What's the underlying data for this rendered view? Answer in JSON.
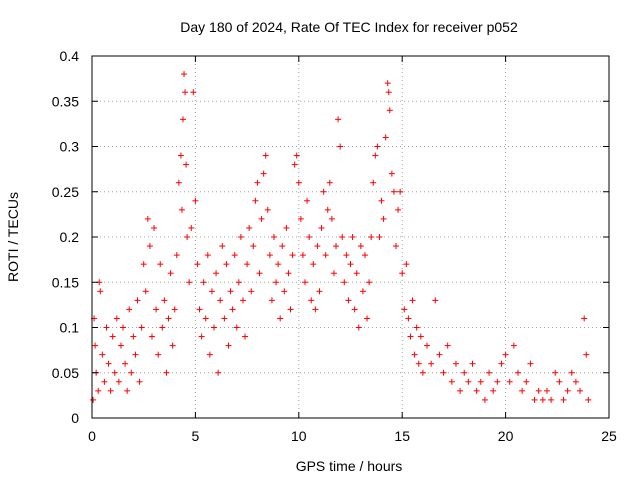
{
  "chart_data": {
    "type": "scatter",
    "title": "Day 180 of 2024, Rate Of TEC Index for receiver p052",
    "xlabel": "GPS time / hours",
    "ylabel": "ROTI / TECUs",
    "xlim": [
      0,
      25
    ],
    "ylim": [
      0,
      0.4
    ],
    "xticks": [
      0,
      5,
      10,
      15,
      20,
      25
    ],
    "yticks": [
      0,
      0.05,
      0.1,
      0.15,
      0.2,
      0.25,
      0.3,
      0.35,
      0.4
    ],
    "grid": true,
    "marker": "+",
    "color": "#ff0000",
    "series": [
      {
        "name": "ROTI",
        "points": [
          [
            0.05,
            0.02
          ],
          [
            0.1,
            0.11
          ],
          [
            0.15,
            0.08
          ],
          [
            0.2,
            0.05
          ],
          [
            0.3,
            0.03
          ],
          [
            0.35,
            0.15
          ],
          [
            0.4,
            0.14
          ],
          [
            0.5,
            0.07
          ],
          [
            0.6,
            0.04
          ],
          [
            0.7,
            0.1
          ],
          [
            0.8,
            0.06
          ],
          [
            0.9,
            0.03
          ],
          [
            1.0,
            0.09
          ],
          [
            1.1,
            0.05
          ],
          [
            1.2,
            0.11
          ],
          [
            1.3,
            0.04
          ],
          [
            1.4,
            0.08
          ],
          [
            1.5,
            0.1
          ],
          [
            1.6,
            0.06
          ],
          [
            1.7,
            0.03
          ],
          [
            1.8,
            0.12
          ],
          [
            1.9,
            0.05
          ],
          [
            2.0,
            0.09
          ],
          [
            2.1,
            0.07
          ],
          [
            2.2,
            0.13
          ],
          [
            2.3,
            0.04
          ],
          [
            2.4,
            0.1
          ],
          [
            2.5,
            0.17
          ],
          [
            2.6,
            0.14
          ],
          [
            2.7,
            0.22
          ],
          [
            2.8,
            0.19
          ],
          [
            2.9,
            0.09
          ],
          [
            3.0,
            0.21
          ],
          [
            3.1,
            0.12
          ],
          [
            3.2,
            0.07
          ],
          [
            3.3,
            0.17
          ],
          [
            3.4,
            0.1
          ],
          [
            3.5,
            0.13
          ],
          [
            3.6,
            0.05
          ],
          [
            3.7,
            0.11
          ],
          [
            3.8,
            0.16
          ],
          [
            3.9,
            0.08
          ],
          [
            4.0,
            0.12
          ],
          [
            4.1,
            0.18
          ],
          [
            4.2,
            0.26
          ],
          [
            4.3,
            0.29
          ],
          [
            4.35,
            0.23
          ],
          [
            4.4,
            0.33
          ],
          [
            4.45,
            0.38
          ],
          [
            4.5,
            0.36
          ],
          [
            4.55,
            0.28
          ],
          [
            4.6,
            0.2
          ],
          [
            4.7,
            0.15
          ],
          [
            4.8,
            0.21
          ],
          [
            4.9,
            0.36
          ],
          [
            5.0,
            0.24
          ],
          [
            5.1,
            0.17
          ],
          [
            5.2,
            0.12
          ],
          [
            5.3,
            0.09
          ],
          [
            5.4,
            0.15
          ],
          [
            5.5,
            0.11
          ],
          [
            5.6,
            0.18
          ],
          [
            5.7,
            0.07
          ],
          [
            5.8,
            0.14
          ],
          [
            5.9,
            0.1
          ],
          [
            6.0,
            0.16
          ],
          [
            6.1,
            0.05
          ],
          [
            6.2,
            0.13
          ],
          [
            6.3,
            0.19
          ],
          [
            6.4,
            0.11
          ],
          [
            6.5,
            0.17
          ],
          [
            6.6,
            0.08
          ],
          [
            6.7,
            0.14
          ],
          [
            6.8,
            0.12
          ],
          [
            6.9,
            0.18
          ],
          [
            7.0,
            0.1
          ],
          [
            7.1,
            0.15
          ],
          [
            7.2,
            0.2
          ],
          [
            7.3,
            0.13
          ],
          [
            7.4,
            0.09
          ],
          [
            7.5,
            0.17
          ],
          [
            7.6,
            0.21
          ],
          [
            7.7,
            0.14
          ],
          [
            7.8,
            0.19
          ],
          [
            7.9,
            0.24
          ],
          [
            8.0,
            0.26
          ],
          [
            8.1,
            0.16
          ],
          [
            8.2,
            0.22
          ],
          [
            8.3,
            0.27
          ],
          [
            8.4,
            0.29
          ],
          [
            8.5,
            0.23
          ],
          [
            8.6,
            0.18
          ],
          [
            8.7,
            0.13
          ],
          [
            8.8,
            0.2
          ],
          [
            8.9,
            0.15
          ],
          [
            9.0,
            0.17
          ],
          [
            9.1,
            0.11
          ],
          [
            9.2,
            0.19
          ],
          [
            9.3,
            0.14
          ],
          [
            9.4,
            0.21
          ],
          [
            9.5,
            0.16
          ],
          [
            9.6,
            0.12
          ],
          [
            9.7,
            0.18
          ],
          [
            9.8,
            0.28
          ],
          [
            9.9,
            0.29
          ],
          [
            10.0,
            0.26
          ],
          [
            10.1,
            0.22
          ],
          [
            10.2,
            0.18
          ],
          [
            10.3,
            0.15
          ],
          [
            10.4,
            0.24
          ],
          [
            10.5,
            0.2
          ],
          [
            10.6,
            0.13
          ],
          [
            10.7,
            0.17
          ],
          [
            10.8,
            0.12
          ],
          [
            10.9,
            0.19
          ],
          [
            11.0,
            0.14
          ],
          [
            11.1,
            0.21
          ],
          [
            11.2,
            0.25
          ],
          [
            11.3,
            0.18
          ],
          [
            11.4,
            0.23
          ],
          [
            11.5,
            0.26
          ],
          [
            11.6,
            0.22
          ],
          [
            11.7,
            0.16
          ],
          [
            11.8,
            0.19
          ],
          [
            11.9,
            0.33
          ],
          [
            12.0,
            0.3
          ],
          [
            12.1,
            0.2
          ],
          [
            12.2,
            0.15
          ],
          [
            12.3,
            0.18
          ],
          [
            12.4,
            0.13
          ],
          [
            12.5,
            0.17
          ],
          [
            12.6,
            0.2
          ],
          [
            12.7,
            0.12
          ],
          [
            12.8,
            0.16
          ],
          [
            12.9,
            0.1
          ],
          [
            13.0,
            0.19
          ],
          [
            13.1,
            0.14
          ],
          [
            13.2,
            0.18
          ],
          [
            13.3,
            0.11
          ],
          [
            13.4,
            0.15
          ],
          [
            13.5,
            0.2
          ],
          [
            13.6,
            0.26
          ],
          [
            13.7,
            0.29
          ],
          [
            13.8,
            0.3
          ],
          [
            13.9,
            0.2
          ],
          [
            14.0,
            0.24
          ],
          [
            14.1,
            0.22
          ],
          [
            14.2,
            0.31
          ],
          [
            14.3,
            0.37
          ],
          [
            14.35,
            0.36
          ],
          [
            14.4,
            0.34
          ],
          [
            14.5,
            0.27
          ],
          [
            14.6,
            0.25
          ],
          [
            14.7,
            0.19
          ],
          [
            14.8,
            0.23
          ],
          [
            14.9,
            0.25
          ],
          [
            15.0,
            0.16
          ],
          [
            15.1,
            0.12
          ],
          [
            15.2,
            0.17
          ],
          [
            15.3,
            0.11
          ],
          [
            15.4,
            0.09
          ],
          [
            15.5,
            0.13
          ],
          [
            15.6,
            0.07
          ],
          [
            15.7,
            0.1
          ],
          [
            15.8,
            0.06
          ],
          [
            15.9,
            0.09
          ],
          [
            16.0,
            0.05
          ],
          [
            16.2,
            0.08
          ],
          [
            16.4,
            0.06
          ],
          [
            16.6,
            0.13
          ],
          [
            16.8,
            0.07
          ],
          [
            17.0,
            0.05
          ],
          [
            17.2,
            0.08
          ],
          [
            17.4,
            0.04
          ],
          [
            17.6,
            0.06
          ],
          [
            17.8,
            0.03
          ],
          [
            18.0,
            0.05
          ],
          [
            18.2,
            0.04
          ],
          [
            18.4,
            0.06
          ],
          [
            18.6,
            0.03
          ],
          [
            18.8,
            0.04
          ],
          [
            19.0,
            0.02
          ],
          [
            19.2,
            0.05
          ],
          [
            19.4,
            0.03
          ],
          [
            19.6,
            0.04
          ],
          [
            19.8,
            0.06
          ],
          [
            20.0,
            0.07
          ],
          [
            20.2,
            0.04
          ],
          [
            20.4,
            0.08
          ],
          [
            20.6,
            0.05
          ],
          [
            20.8,
            0.03
          ],
          [
            21.0,
            0.04
          ],
          [
            21.2,
            0.06
          ],
          [
            21.4,
            0.02
          ],
          [
            21.6,
            0.03
          ],
          [
            21.8,
            0.02
          ],
          [
            22.0,
            0.03
          ],
          [
            22.2,
            0.02
          ],
          [
            22.4,
            0.05
          ],
          [
            22.6,
            0.04
          ],
          [
            22.8,
            0.02
          ],
          [
            23.0,
            0.03
          ],
          [
            23.2,
            0.05
          ],
          [
            23.4,
            0.04
          ],
          [
            23.6,
            0.03
          ],
          [
            23.8,
            0.11
          ],
          [
            23.9,
            0.07
          ],
          [
            24.0,
            0.02
          ]
        ]
      }
    ]
  }
}
